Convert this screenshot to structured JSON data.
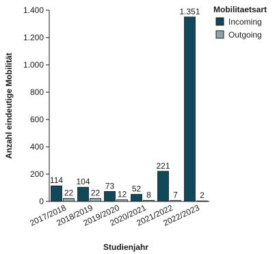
{
  "chart_data": {
    "type": "bar",
    "categories": [
      "2017/2018",
      "2018/2019",
      "2019/2020",
      "2020/2021",
      "2021/2022",
      "2022/2023"
    ],
    "series": [
      {
        "name": "Incoming",
        "values": [
          114,
          104,
          73,
          52,
          221,
          1351
        ],
        "labels": [
          "114",
          "104",
          "73",
          "52",
          "221",
          "1.351"
        ]
      },
      {
        "name": "Outgoing",
        "values": [
          22,
          22,
          12,
          8,
          7,
          2
        ],
        "labels": [
          "22",
          "22",
          "12",
          "8",
          "7",
          "2"
        ]
      }
    ],
    "xlabel": "Studienjahr",
    "ylabel": "Anzahl eindeutige Mobilität",
    "ylim": [
      0,
      1400
    ],
    "yticks": [
      0,
      200,
      400,
      600,
      800,
      1000,
      1200,
      1400
    ],
    "ytick_labels": [
      "0",
      "200",
      "400",
      "600",
      "800",
      "1.000",
      "1.200",
      "1.400"
    ],
    "legend": {
      "title": "Mobilitaetsart",
      "position": "top-right"
    },
    "colors": {
      "Incoming": "#12485c",
      "Outgoing": "#8aa6a6",
      "axis": "#1a1a1a"
    },
    "grid": false
  }
}
